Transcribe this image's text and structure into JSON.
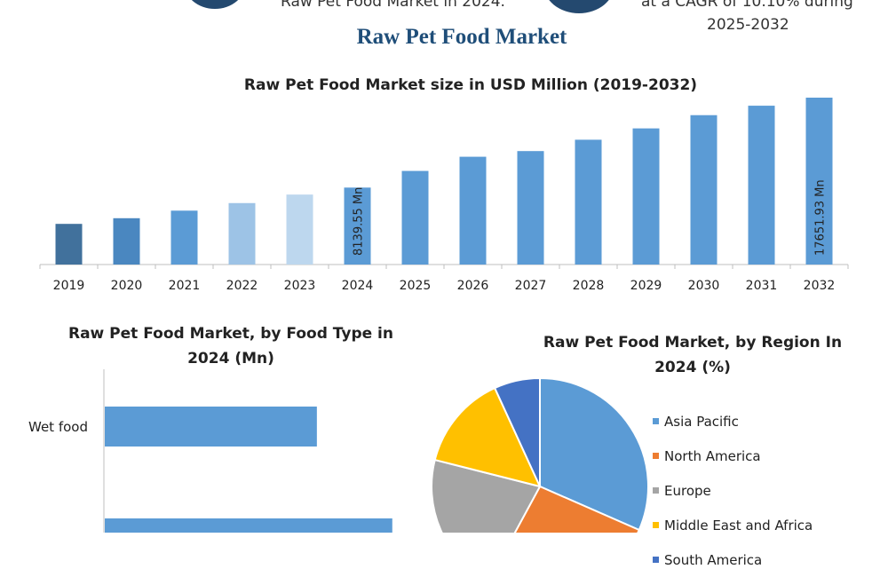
{
  "header": {
    "left_text": "Raw Pet Food Market in 2024.",
    "right_text_1": "at a CAGR of 10.10% during",
    "right_text_2": "2025-2032"
  },
  "main_title": "Raw Pet Food Market",
  "colors": {
    "blue": "#5b9bd5",
    "dark_blue": "#41719c",
    "mid_blue": "#4a87c0",
    "light_blue": "#9dc3e6",
    "lighter_blue": "#bdd7ee",
    "orange": "#ed7d31",
    "gray": "#a5a5a5",
    "yellow": "#ffc000",
    "navy": "#4472c4"
  },
  "chart_data": [
    {
      "type": "bar",
      "title": "Raw Pet Food Market size in USD Million (2019-2032)",
      "categories": [
        "2019",
        "2020",
        "2021",
        "2022",
        "2023",
        "2024",
        "2025",
        "2026",
        "2027",
        "2028",
        "2029",
        "2030",
        "2031",
        "2032"
      ],
      "values": [
        4300,
        4900,
        5700,
        6500,
        7400,
        8139.55,
        9900,
        11400,
        12000,
        13200,
        14400,
        15800,
        16800,
        17651.93
      ],
      "bar_colors": [
        "#41719c",
        "#4a87c0",
        "#5b9bd5",
        "#9dc3e6",
        "#bdd7ee",
        "#5b9bd5",
        "#5b9bd5",
        "#5b9bd5",
        "#5b9bd5",
        "#5b9bd5",
        "#5b9bd5",
        "#5b9bd5",
        "#5b9bd5",
        "#5b9bd5"
      ],
      "data_labels": [
        {
          "category": "2024",
          "text": "8139.55 Mn"
        },
        {
          "category": "2032",
          "text": "17651.93 Mn"
        }
      ],
      "ylim": [
        0,
        17651.93
      ]
    },
    {
      "type": "bar",
      "orientation": "horizontal",
      "title_line1": "Raw Pet Food Market, by Food Type in",
      "title_line2": "2024 (Mn)",
      "categories": [
        "Wet food",
        ""
      ],
      "values": [
        4500,
        6100
      ],
      "xlim": [
        0,
        6500
      ]
    },
    {
      "type": "pie",
      "title_line1": "Raw Pet Food Market, by Region In",
      "title_line2": "2024 (%)",
      "slices": [
        {
          "label": "Asia Pacific",
          "value": 30,
          "color": "#5b9bd5"
        },
        {
          "label": "North America",
          "value": 25,
          "color": "#ed7d31"
        },
        {
          "label": "Europe",
          "value": 20,
          "color": "#a5a5a5"
        },
        {
          "label": "Middle East and Africa",
          "value": 13.5,
          "color": "#ffc000"
        },
        {
          "label": "South America",
          "value": 6.5,
          "color": "#4472c4"
        }
      ]
    }
  ]
}
